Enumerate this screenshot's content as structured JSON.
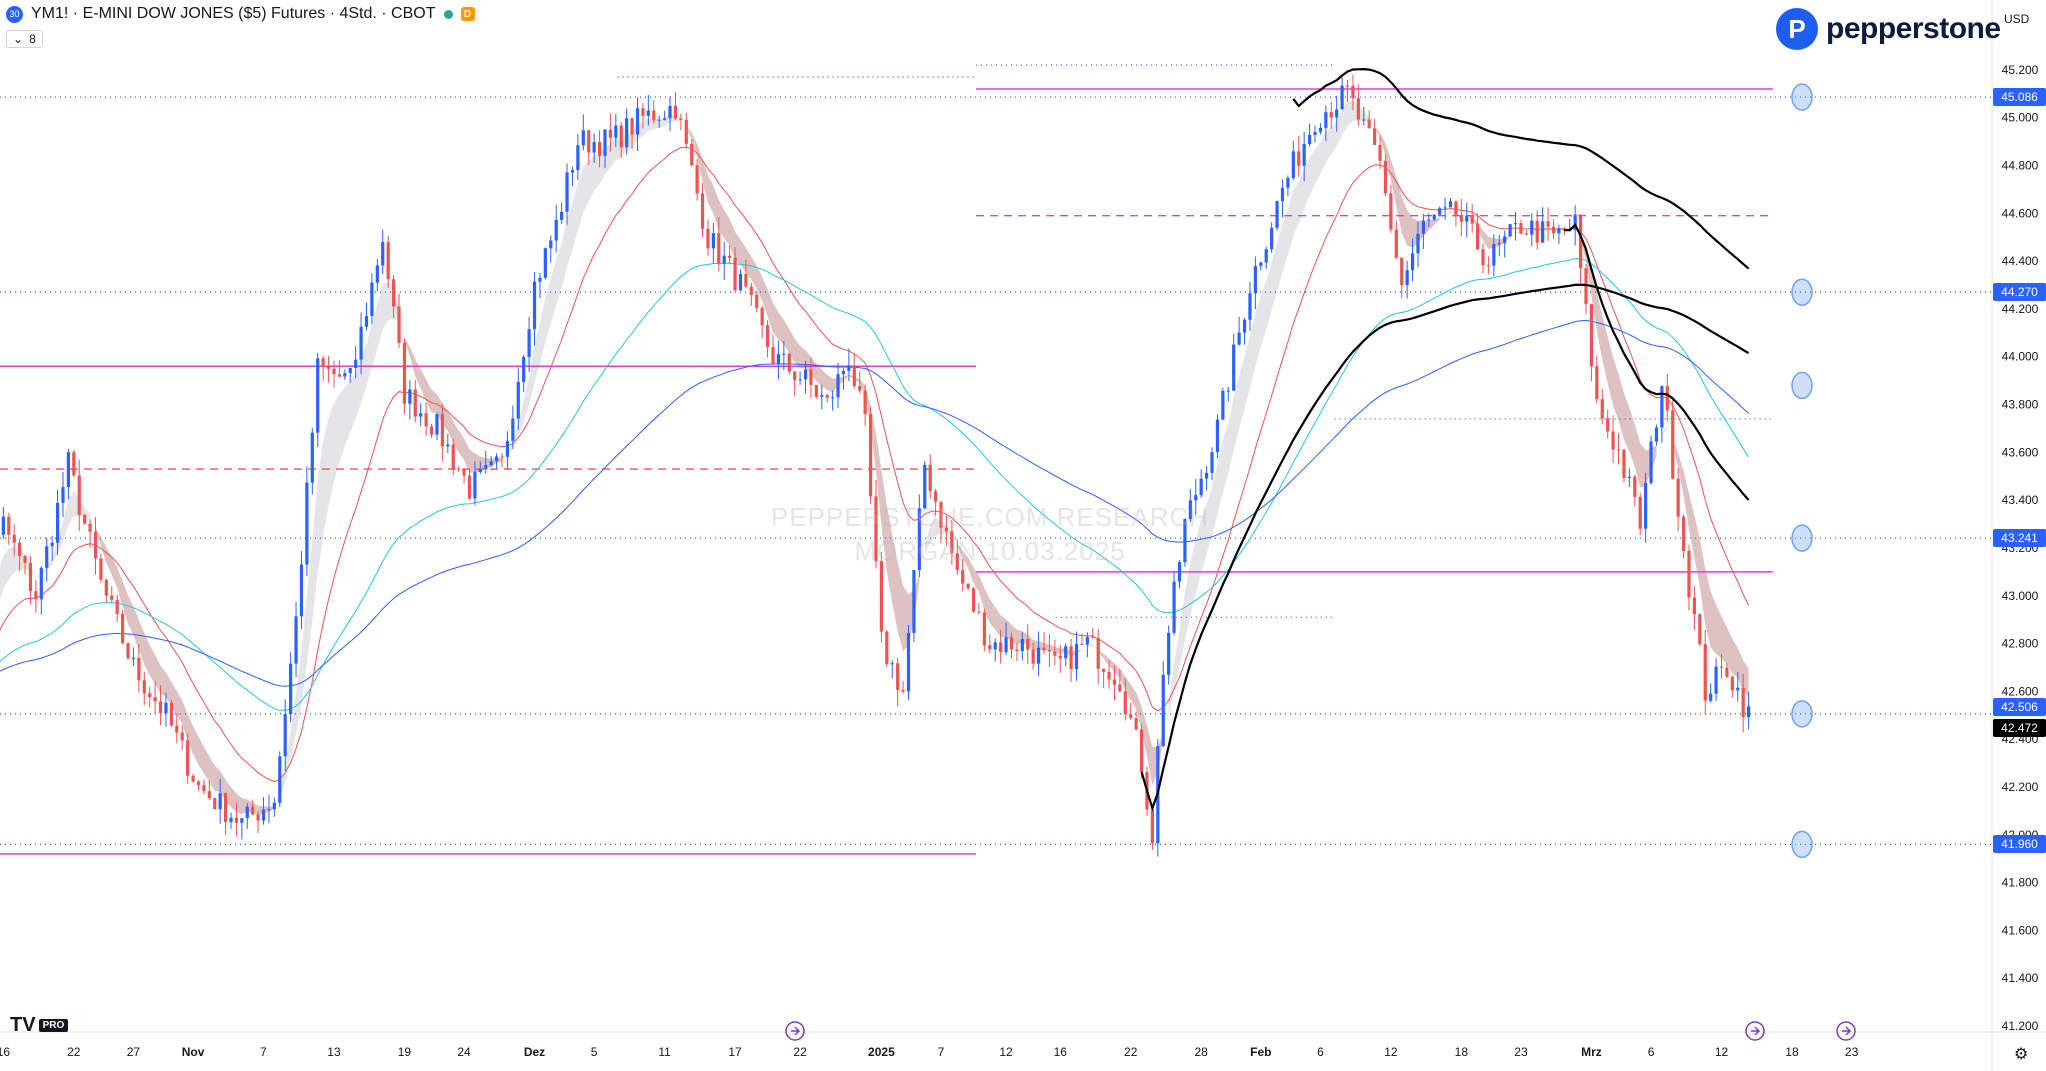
{
  "header": {
    "symbol_badge": "30",
    "title": "YM1! · E-MINI DOW JONES ($5) Futures · 4Std. · CBOT",
    "delay_badge": "D",
    "indicator_count": "8",
    "currency": "USD"
  },
  "branding": {
    "logo_mark": "P",
    "logo_text": "pepperstone",
    "tv_logo": "TV",
    "tv_badge": "PRO"
  },
  "watermark": [
    "PEPPERSTONE.COM RESEARCH",
    "MORGAN 10.03.2025"
  ],
  "colors": {
    "up_candle": "#2962ff",
    "down_candle": "#ef5350",
    "ema_fast": "#ef5350",
    "ema_mid": "#26c6da",
    "ema_slow": "#2962ff",
    "vwap": "#000000",
    "level_magenta": "#e040c8",
    "level_blue": "#2962ff",
    "last_price": "#000000",
    "marker": "#6fa3ef"
  },
  "chart_data": {
    "type": "candlestick",
    "instrument": "YM1! E-MINI DOW JONES ($5) Futures",
    "timeframe": "4Std.",
    "ylim": [
      41200,
      45300
    ],
    "y_ticks": [
      41200,
      41400,
      41600,
      41800,
      42000,
      42200,
      42400,
      42600,
      42800,
      43000,
      43200,
      43400,
      43600,
      43800,
      44000,
      44200,
      44400,
      44600,
      44800,
      45000,
      45200
    ],
    "y_tick_labels": [
      "41.200",
      "41.400",
      "41.600",
      "41.800",
      "42.000",
      "42.200",
      "42.400",
      "42.600",
      "42.800",
      "43.000",
      "43.200",
      "43.400",
      "43.600",
      "43.800",
      "44.000",
      "44.200",
      "44.400",
      "44.600",
      "44.800",
      "45.000",
      "45.200"
    ],
    "x_ticks": [
      {
        "label": "16",
        "i": 8
      },
      {
        "label": "22",
        "i": 21
      },
      {
        "label": "27",
        "i": 32
      },
      {
        "label": "Nov",
        "i": 43,
        "bold": true
      },
      {
        "label": "7",
        "i": 56
      },
      {
        "label": "13",
        "i": 69
      },
      {
        "label": "19",
        "i": 82
      },
      {
        "label": "24",
        "i": 93
      },
      {
        "label": "Dez",
        "i": 106,
        "bold": true
      },
      {
        "label": "5",
        "i": 117
      },
      {
        "label": "11",
        "i": 130
      },
      {
        "label": "17",
        "i": 143
      },
      {
        "label": "22",
        "i": 155
      },
      {
        "label": "2025",
        "i": 170,
        "bold": true
      },
      {
        "label": "7",
        "i": 181
      },
      {
        "label": "12",
        "i": 193
      },
      {
        "label": "16",
        "i": 203
      },
      {
        "label": "22",
        "i": 216
      },
      {
        "label": "28",
        "i": 229
      },
      {
        "label": "Feb",
        "i": 240,
        "bold": true
      },
      {
        "label": "6",
        "i": 251
      },
      {
        "label": "12",
        "i": 264
      },
      {
        "label": "18",
        "i": 277
      },
      {
        "label": "23",
        "i": 288
      },
      {
        "label": "Mrz",
        "i": 301,
        "bold": true
      },
      {
        "label": "6",
        "i": 312
      },
      {
        "label": "12",
        "i": 325
      },
      {
        "label": "18",
        "i": 338
      },
      {
        "label": "23",
        "i": 349
      }
    ],
    "price_labels": [
      {
        "value": 45086,
        "label": "45.086",
        "kind": "level"
      },
      {
        "value": 44270,
        "label": "44.270",
        "kind": "level"
      },
      {
        "value": 43241,
        "label": "43.241",
        "kind": "level"
      },
      {
        "value": 42506,
        "label": "42.506",
        "kind": "level"
      },
      {
        "value": 42472,
        "label": "42.472",
        "kind": "last"
      },
      {
        "value": 41960,
        "label": "41.960",
        "kind": "level"
      }
    ],
    "horizontal_levels": [
      {
        "value": 45086,
        "style": "dotted",
        "color": "blue",
        "from": 0,
        "to": 1.0
      },
      {
        "value": 44270,
        "style": "dotted",
        "color": "blue",
        "from": 0,
        "to": 1.0
      },
      {
        "value": 43241,
        "style": "dotted",
        "color": "blue",
        "from": 0,
        "to": 1.0
      },
      {
        "value": 42506,
        "style": "dotted",
        "color": "blue",
        "from": 0,
        "to": 1.0
      },
      {
        "value": 41960,
        "style": "dotted",
        "color": "blue",
        "from": 0,
        "to": 1.0
      },
      {
        "value": 43960,
        "style": "solid",
        "color": "magenta",
        "from": 0,
        "to": 0.49
      },
      {
        "value": 41920,
        "style": "solid",
        "color": "magenta",
        "from": 0,
        "to": 0.49
      },
      {
        "value": 45120,
        "style": "solid",
        "color": "magenta",
        "from": 0.49,
        "to": 0.89
      },
      {
        "value": 43100,
        "style": "solid",
        "color": "magenta",
        "from": 0.49,
        "to": 0.89
      },
      {
        "value": 44590,
        "style": "dashed",
        "color": "magenta",
        "from": 0.49,
        "to": 0.89
      },
      {
        "value": 43530,
        "style": "dashed",
        "color": "red",
        "from": 0,
        "to": 0.49
      },
      {
        "value": 45170,
        "style": "dotted",
        "color": "blue",
        "from": 0.31,
        "to": 0.49
      },
      {
        "value": 45220,
        "style": "dotted",
        "color": "blue",
        "from": 0.49,
        "to": 0.67
      },
      {
        "value": 43740,
        "style": "dotted",
        "color": "blue",
        "from": 0.67,
        "to": 0.89
      },
      {
        "value": 42910,
        "style": "dotted",
        "color": "blue",
        "from": 0.53,
        "to": 0.67
      }
    ],
    "markers_at_values": [
      45086,
      44270,
      43880,
      43241,
      42506,
      41960
    ],
    "bar_count": 300,
    "series": [
      {
        "kind": "candles",
        "close_path": [
          [
            0,
            42700
          ],
          [
            8,
            43300
          ],
          [
            14,
            43000
          ],
          [
            20,
            43550
          ],
          [
            26,
            43050
          ],
          [
            32,
            42700
          ],
          [
            38,
            42500
          ],
          [
            44,
            42200
          ],
          [
            52,
            42050
          ],
          [
            58,
            42150
          ],
          [
            62,
            42900
          ],
          [
            66,
            43950
          ],
          [
            72,
            43900
          ],
          [
            78,
            44500
          ],
          [
            82,
            43850
          ],
          [
            88,
            43700
          ],
          [
            94,
            43450
          ],
          [
            100,
            43550
          ],
          [
            106,
            44300
          ],
          [
            110,
            44550
          ],
          [
            114,
            44900
          ],
          [
            120,
            44900
          ],
          [
            126,
            45000
          ],
          [
            132,
            45050
          ],
          [
            138,
            44500
          ],
          [
            144,
            44300
          ],
          [
            150,
            44000
          ],
          [
            156,
            43900
          ],
          [
            160,
            43800
          ],
          [
            164,
            44000
          ],
          [
            167,
            43700
          ],
          [
            170,
            42800
          ],
          [
            174,
            42600
          ],
          [
            178,
            43550
          ],
          [
            184,
            43100
          ],
          [
            190,
            42800
          ],
          [
            196,
            42800
          ],
          [
            202,
            42700
          ],
          [
            208,
            42800
          ],
          [
            214,
            42650
          ],
          [
            218,
            42300
          ],
          [
            220,
            42000
          ],
          [
            222,
            42700
          ],
          [
            226,
            43300
          ],
          [
            232,
            43700
          ],
          [
            238,
            44300
          ],
          [
            244,
            44700
          ],
          [
            250,
            45000
          ],
          [
            256,
            45100
          ],
          [
            262,
            44800
          ],
          [
            266,
            44300
          ],
          [
            270,
            44550
          ],
          [
            276,
            44600
          ],
          [
            282,
            44400
          ],
          [
            288,
            44550
          ],
          [
            294,
            44500
          ],
          [
            298,
            44550
          ],
          [
            302,
            43800
          ],
          [
            306,
            43600
          ],
          [
            310,
            43300
          ],
          [
            314,
            43900
          ],
          [
            318,
            43200
          ],
          [
            322,
            42600
          ],
          [
            326,
            42700
          ],
          [
            330,
            42500
          ]
        ]
      }
    ]
  },
  "bottom_icons": [
    "goto-realtime-icon",
    "alert-icon",
    "settings-icon"
  ]
}
